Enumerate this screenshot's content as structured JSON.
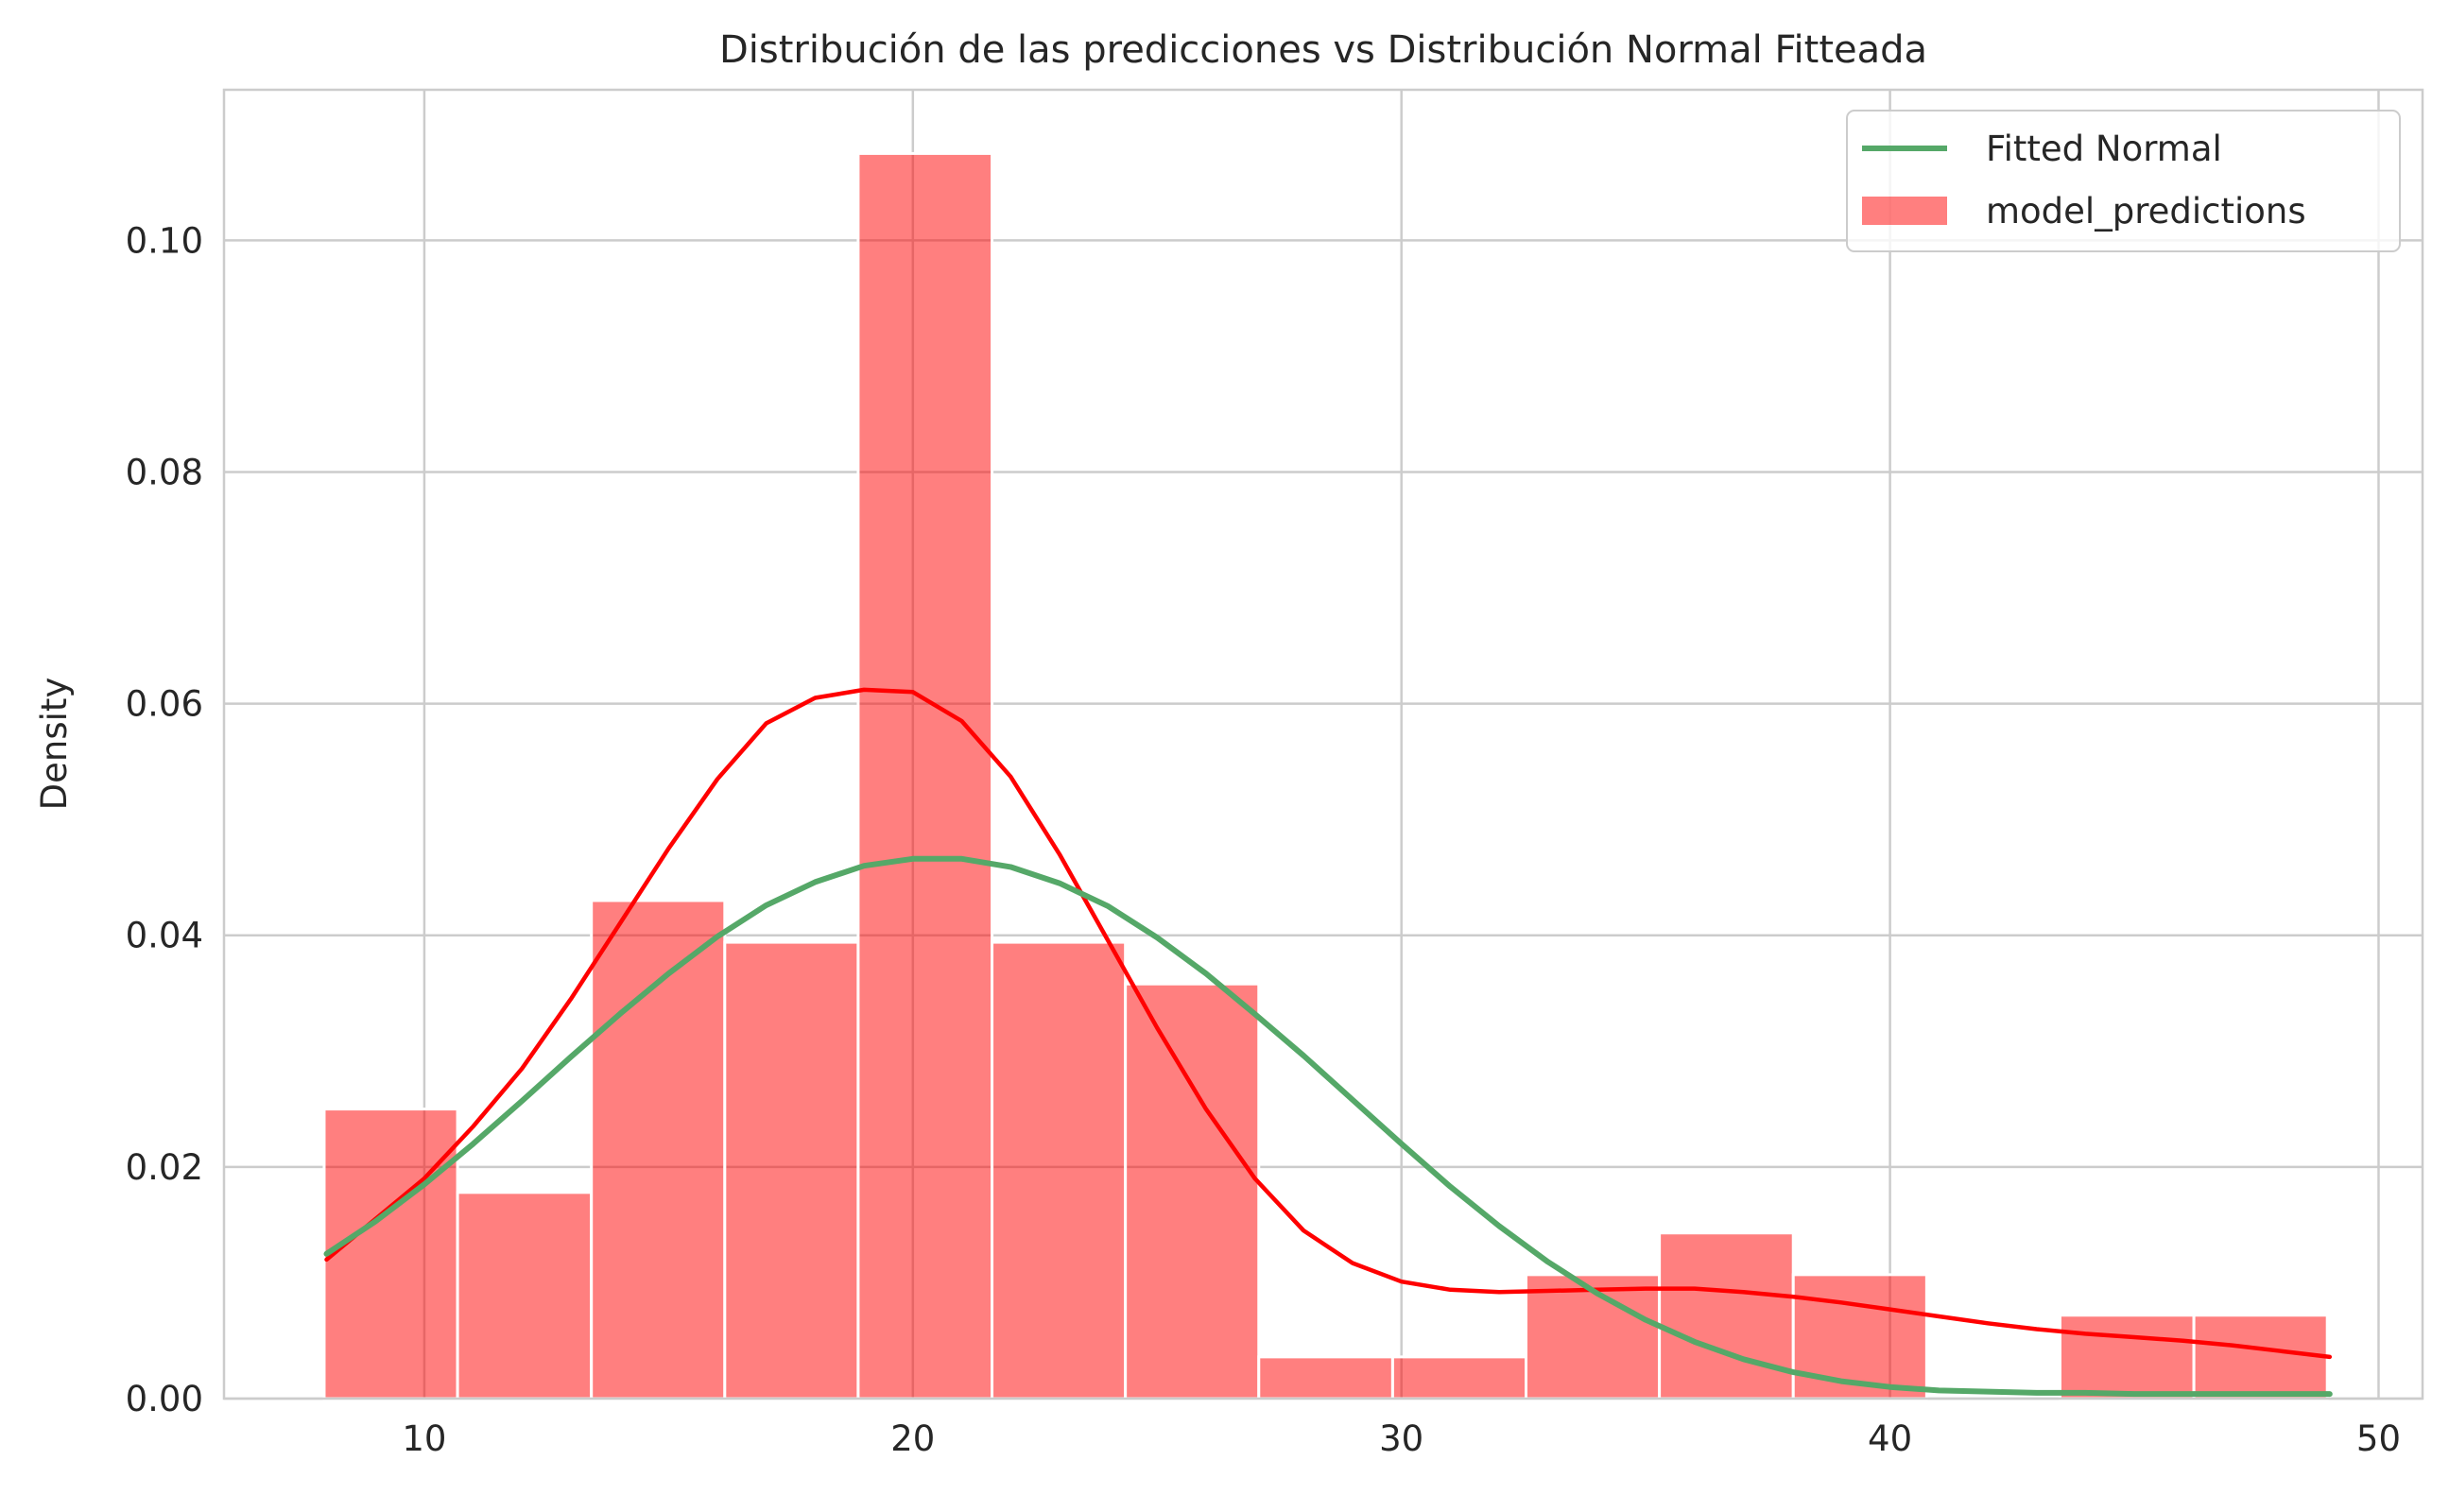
{
  "chart_data": {
    "type": "bar",
    "title": "Distribución de las predicciones vs Distribución Normal Fitteada",
    "xlabel": "",
    "ylabel": "Density",
    "xlim": [
      5.9,
      50.9
    ],
    "ylim": [
      0,
      0.113
    ],
    "x_ticks": [
      10,
      20,
      30,
      40,
      50
    ],
    "y_ticks": [
      0.0,
      0.02,
      0.04,
      0.06,
      0.08,
      0.1
    ],
    "x_tick_labels": [
      "10",
      "20",
      "30",
      "40",
      "50"
    ],
    "y_tick_labels": [
      "0.00",
      "0.02",
      "0.04",
      "0.06",
      "0.08",
      "0.10"
    ],
    "grid": true,
    "legend_position": "top-right",
    "series": [
      {
        "name": "model_predictions",
        "kind": "histogram",
        "color": "#ff0000",
        "alpha": 0.5,
        "bin_edges": [
          7.95,
          10.68,
          13.42,
          16.15,
          18.88,
          21.62,
          24.35,
          27.08,
          29.82,
          32.55,
          35.28,
          38.02,
          40.75,
          43.48,
          46.22,
          48.95
        ],
        "values": [
          0.025,
          0.0178,
          0.043,
          0.0394,
          0.1075,
          0.0394,
          0.0358,
          0.0036,
          0.0036,
          0.0107,
          0.0143,
          0.0107,
          0.0,
          0.0072,
          0.0072
        ]
      },
      {
        "name": "",
        "kind": "kde",
        "color": "#ff0000",
        "x": [
          8,
          9,
          10,
          11,
          12,
          13,
          14,
          15,
          16,
          17,
          18,
          19,
          20,
          21,
          22,
          23,
          24,
          25,
          26,
          27,
          28,
          29,
          30,
          31,
          32,
          33,
          34,
          35,
          36,
          37,
          38,
          39,
          40,
          41,
          42,
          43,
          44,
          45,
          46,
          47,
          48,
          49
        ],
        "y": [
          0.012,
          0.0155,
          0.019,
          0.0235,
          0.0285,
          0.0345,
          0.041,
          0.0475,
          0.0535,
          0.0583,
          0.0605,
          0.0612,
          0.061,
          0.0585,
          0.0537,
          0.047,
          0.0395,
          0.032,
          0.025,
          0.019,
          0.0145,
          0.0117,
          0.0101,
          0.0094,
          0.0092,
          0.0093,
          0.0094,
          0.0095,
          0.0095,
          0.0092,
          0.0088,
          0.0083,
          0.0077,
          0.0071,
          0.0065,
          0.006,
          0.0056,
          0.0053,
          0.005,
          0.0046,
          0.0041,
          0.0036
        ]
      },
      {
        "name": "Fitted Normal",
        "kind": "line",
        "color": "#55a868",
        "x": [
          8,
          9,
          10,
          11,
          12,
          13,
          14,
          15,
          16,
          17,
          18,
          19,
          20,
          21,
          22,
          23,
          24,
          25,
          26,
          27,
          28,
          29,
          30,
          31,
          32,
          33,
          34,
          35,
          36,
          37,
          38,
          39,
          40,
          41,
          42,
          43,
          44,
          45,
          46,
          47,
          48,
          49
        ],
        "y": [
          0.0125,
          0.0153,
          0.0185,
          0.022,
          0.0257,
          0.0295,
          0.0332,
          0.0367,
          0.0399,
          0.0426,
          0.0446,
          0.046,
          0.0466,
          0.0466,
          0.0459,
          0.0445,
          0.0425,
          0.0398,
          0.0367,
          0.0332,
          0.0296,
          0.0258,
          0.022,
          0.0183,
          0.0149,
          0.0118,
          0.0091,
          0.0068,
          0.0049,
          0.0034,
          0.0023,
          0.0015,
          0.001,
          0.0007,
          0.0006,
          0.0005,
          0.0005,
          0.0004,
          0.0004,
          0.0004,
          0.0004,
          0.0004
        ]
      }
    ],
    "legend": [
      {
        "label": "Fitted Normal",
        "swatch": "line",
        "color": "#55a868"
      },
      {
        "label": "model_predictions",
        "swatch": "patch",
        "color": "#ff0000",
        "alpha": 0.5
      }
    ]
  }
}
